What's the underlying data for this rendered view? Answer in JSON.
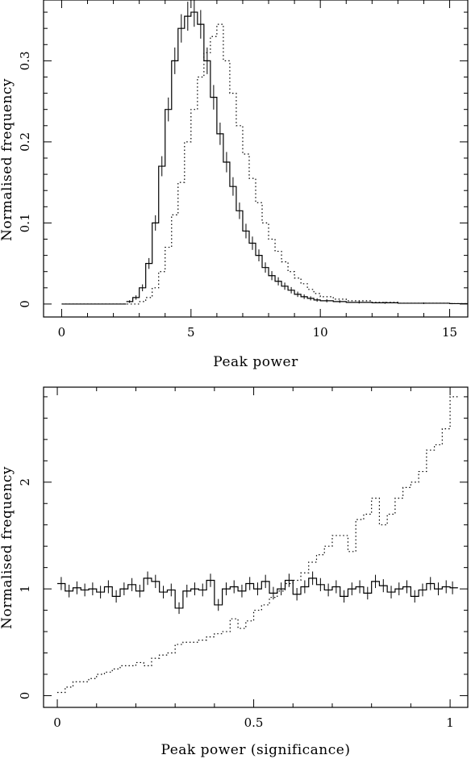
{
  "figure": {
    "panels": [
      {
        "xlabel": "Peak power",
        "ylabel": "Normalised frequency",
        "xticks": [
          "0",
          "5",
          "10",
          "15"
        ],
        "yticks": [
          "0",
          "0.1",
          "0.2",
          "0.3"
        ]
      },
      {
        "xlabel": "Peak power (significance)",
        "ylabel": "Normalised frequency",
        "xticks": [
          "0",
          "0.5",
          "1"
        ],
        "yticks": [
          "0",
          "1",
          "2"
        ]
      }
    ]
  },
  "chart_data": [
    {
      "type": "line",
      "title": "",
      "xlabel": "Peak power",
      "ylabel": "Normalised frequency",
      "xlim": [
        -0.7,
        15.7
      ],
      "ylim": [
        -0.016,
        0.375
      ],
      "grid": false,
      "legend": "none",
      "series": [
        {
          "style": "solid histogram with error bars",
          "x": [
            2.5,
            2.75,
            3.0,
            3.25,
            3.5,
            3.75,
            4.0,
            4.25,
            4.5,
            4.75,
            5.0,
            5.25,
            5.5,
            5.75,
            6.0,
            6.25,
            6.5,
            6.75,
            7.0,
            7.25,
            7.5,
            7.75,
            8.0,
            8.25,
            8.5,
            8.75,
            9.0,
            9.25,
            9.5,
            9.75,
            10.0,
            10.5,
            11.0,
            12.0,
            13.0,
            15.0
          ],
          "y": [
            0.003,
            0.008,
            0.02,
            0.05,
            0.1,
            0.17,
            0.24,
            0.3,
            0.34,
            0.355,
            0.36,
            0.345,
            0.3,
            0.255,
            0.21,
            0.175,
            0.145,
            0.115,
            0.09,
            0.075,
            0.06,
            0.045,
            0.035,
            0.028,
            0.022,
            0.017,
            0.012,
            0.009,
            0.007,
            0.005,
            0.004,
            0.003,
            0.002,
            0.0015,
            0.001,
            0.0005
          ]
        },
        {
          "style": "dotted histogram",
          "x": [
            3.0,
            3.25,
            3.5,
            3.75,
            4.0,
            4.25,
            4.5,
            4.75,
            5.0,
            5.25,
            5.5,
            5.75,
            6.0,
            6.25,
            6.5,
            6.75,
            7.0,
            7.25,
            7.5,
            7.75,
            8.0,
            8.25,
            8.5,
            8.75,
            9.0,
            9.25,
            9.5,
            9.75,
            10.0,
            10.5,
            11.0,
            12.0,
            13.0,
            15.0
          ],
          "y": [
            0.003,
            0.008,
            0.02,
            0.04,
            0.07,
            0.11,
            0.15,
            0.2,
            0.24,
            0.28,
            0.31,
            0.33,
            0.345,
            0.3,
            0.26,
            0.22,
            0.185,
            0.155,
            0.125,
            0.1,
            0.08,
            0.065,
            0.052,
            0.04,
            0.032,
            0.025,
            0.018,
            0.013,
            0.009,
            0.006,
            0.004,
            0.002,
            0.001,
            0.0005
          ]
        }
      ]
    },
    {
      "type": "line",
      "title": "",
      "xlabel": "Peak power (significance)",
      "ylabel": "Normalised frequency",
      "xlim": [
        -0.035,
        1.045
      ],
      "ylim": [
        -0.11,
        2.89
      ],
      "grid": false,
      "legend": "none",
      "series": [
        {
          "style": "solid histogram with error bars",
          "x": [
            0.0,
            0.02,
            0.04,
            0.06,
            0.08,
            0.1,
            0.12,
            0.14,
            0.16,
            0.18,
            0.2,
            0.22,
            0.24,
            0.26,
            0.28,
            0.3,
            0.32,
            0.34,
            0.36,
            0.38,
            0.4,
            0.42,
            0.44,
            0.46,
            0.48,
            0.5,
            0.52,
            0.54,
            0.56,
            0.58,
            0.6,
            0.62,
            0.64,
            0.66,
            0.68,
            0.7,
            0.72,
            0.74,
            0.76,
            0.78,
            0.8,
            0.82,
            0.84,
            0.86,
            0.88,
            0.9,
            0.92,
            0.94,
            0.96,
            0.98,
            1.0
          ],
          "y": [
            1.05,
            0.98,
            1.01,
            0.99,
            1.0,
            0.97,
            1.02,
            0.93,
            1.0,
            1.04,
            0.98,
            1.1,
            1.07,
            0.97,
            0.99,
            0.82,
            0.98,
            1.0,
            0.99,
            1.08,
            0.85,
            1.0,
            1.02,
            0.98,
            1.05,
            1.0,
            1.07,
            0.96,
            1.0,
            1.08,
            0.95,
            1.02,
            1.1,
            1.04,
            0.99,
            1.02,
            0.93,
            1.0,
            1.02,
            0.96,
            1.07,
            1.03,
            0.97,
            1.0,
            1.02,
            0.93,
            0.99,
            1.05,
            1.0,
            1.02,
            1.01
          ]
        },
        {
          "style": "dotted histogram",
          "x": [
            0.0,
            0.02,
            0.04,
            0.06,
            0.08,
            0.1,
            0.12,
            0.14,
            0.16,
            0.18,
            0.2,
            0.22,
            0.24,
            0.26,
            0.28,
            0.3,
            0.32,
            0.34,
            0.36,
            0.38,
            0.4,
            0.42,
            0.44,
            0.46,
            0.48,
            0.5,
            0.52,
            0.54,
            0.56,
            0.58,
            0.6,
            0.62,
            0.64,
            0.66,
            0.68,
            0.7,
            0.72,
            0.74,
            0.76,
            0.78,
            0.8,
            0.82,
            0.84,
            0.86,
            0.88,
            0.9,
            0.92,
            0.94,
            0.96,
            0.98,
            1.0
          ],
          "y": [
            0.03,
            0.08,
            0.13,
            0.13,
            0.16,
            0.2,
            0.22,
            0.25,
            0.28,
            0.28,
            0.31,
            0.28,
            0.35,
            0.38,
            0.4,
            0.48,
            0.5,
            0.5,
            0.52,
            0.55,
            0.58,
            0.6,
            0.72,
            0.63,
            0.7,
            0.8,
            0.85,
            0.92,
            0.98,
            1.05,
            1.08,
            1.15,
            1.25,
            1.32,
            1.4,
            1.5,
            1.5,
            1.35,
            1.65,
            1.7,
            1.85,
            1.6,
            1.7,
            1.85,
            1.95,
            2.0,
            2.1,
            2.3,
            2.35,
            2.5,
            2.8
          ]
        }
      ]
    }
  ]
}
